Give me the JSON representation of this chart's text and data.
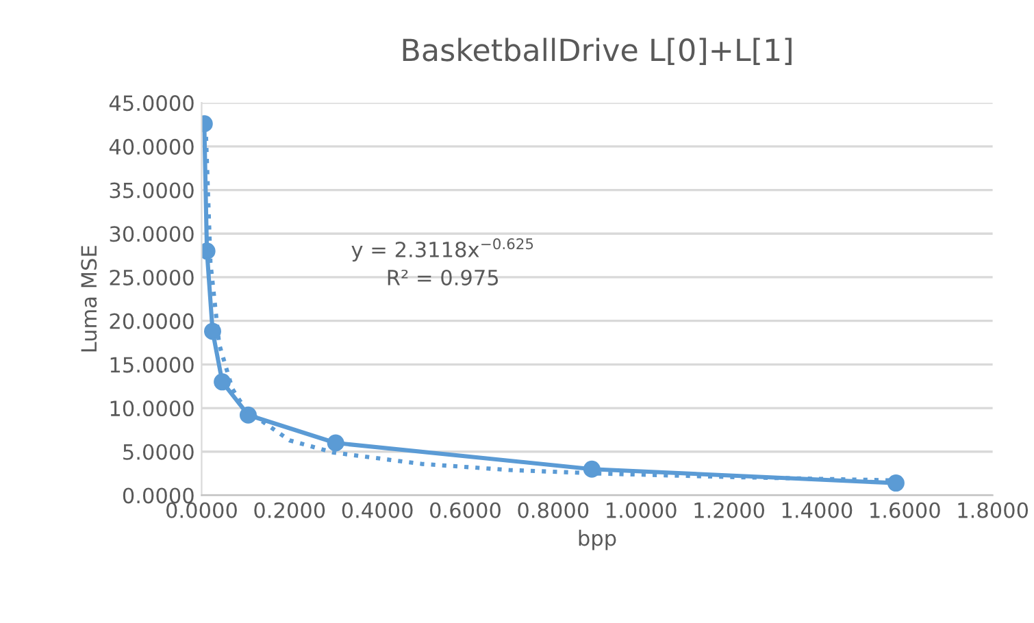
{
  "chart_data": {
    "type": "line",
    "title": "BasketballDrive L[0]+L[1]",
    "xlabel": "bpp",
    "ylabel": "Luma MSE",
    "annotations": [
      "y = 2.3118x$^{−0.625}$",
      "R² = 0.975"
    ],
    "series": [
      {
        "x": [
          0.006,
          0.012,
          0.025,
          0.047,
          0.106,
          0.305,
          0.888,
          1.58
        ],
        "values": [
          42.6,
          28.0,
          18.8,
          13.0,
          9.2,
          6.0,
          3.0,
          1.4
        ],
        "color": "#5b9bd5",
        "marker": "circle",
        "line_style": "solid"
      },
      {
        "x": [
          0.01,
          0.02,
          0.04,
          0.07,
          0.1,
          0.2,
          0.3,
          0.5,
          0.7,
          0.9,
          1.2,
          1.58
        ],
        "values": [
          41.1,
          26.7,
          17.3,
          12.2,
          9.8,
          6.3,
          4.9,
          3.6,
          2.9,
          2.5,
          2.1,
          1.7
        ],
        "color": "#5b9bd5",
        "marker": "none",
        "line_style": "dotted"
      }
    ],
    "xlim": [
      0,
      1.8
    ],
    "xticks": [
      {
        "value": 0,
        "label": "0.0000"
      },
      {
        "value": 0.2,
        "label": "0.2000"
      },
      {
        "value": 0.4,
        "label": "0.4000"
      },
      {
        "value": 0.6,
        "label": "0.6000"
      },
      {
        "value": 0.8,
        "label": "0.8000"
      },
      {
        "value": 1.0,
        "label": "1.0000"
      },
      {
        "value": 1.2,
        "label": "1.2000"
      },
      {
        "value": 1.4,
        "label": "1.4000"
      },
      {
        "value": 1.6,
        "label": "1.6000"
      },
      {
        "value": 1.8,
        "label": "1.8000"
      }
    ],
    "ylim": [
      0,
      45
    ],
    "yticks": [
      {
        "value": 0,
        "label": "0.0000"
      },
      {
        "value": 5,
        "label": "5.0000"
      },
      {
        "value": 10,
        "label": "10.0000"
      },
      {
        "value": 15,
        "label": "15.0000"
      },
      {
        "value": 20,
        "label": "20.0000"
      },
      {
        "value": 25,
        "label": "25.0000"
      },
      {
        "value": 30,
        "label": "30.0000"
      },
      {
        "value": 35,
        "label": "35.0000"
      },
      {
        "value": 40,
        "label": "40.0000"
      },
      {
        "value": 45,
        "label": "45.0000"
      }
    ],
    "grid": "y"
  }
}
